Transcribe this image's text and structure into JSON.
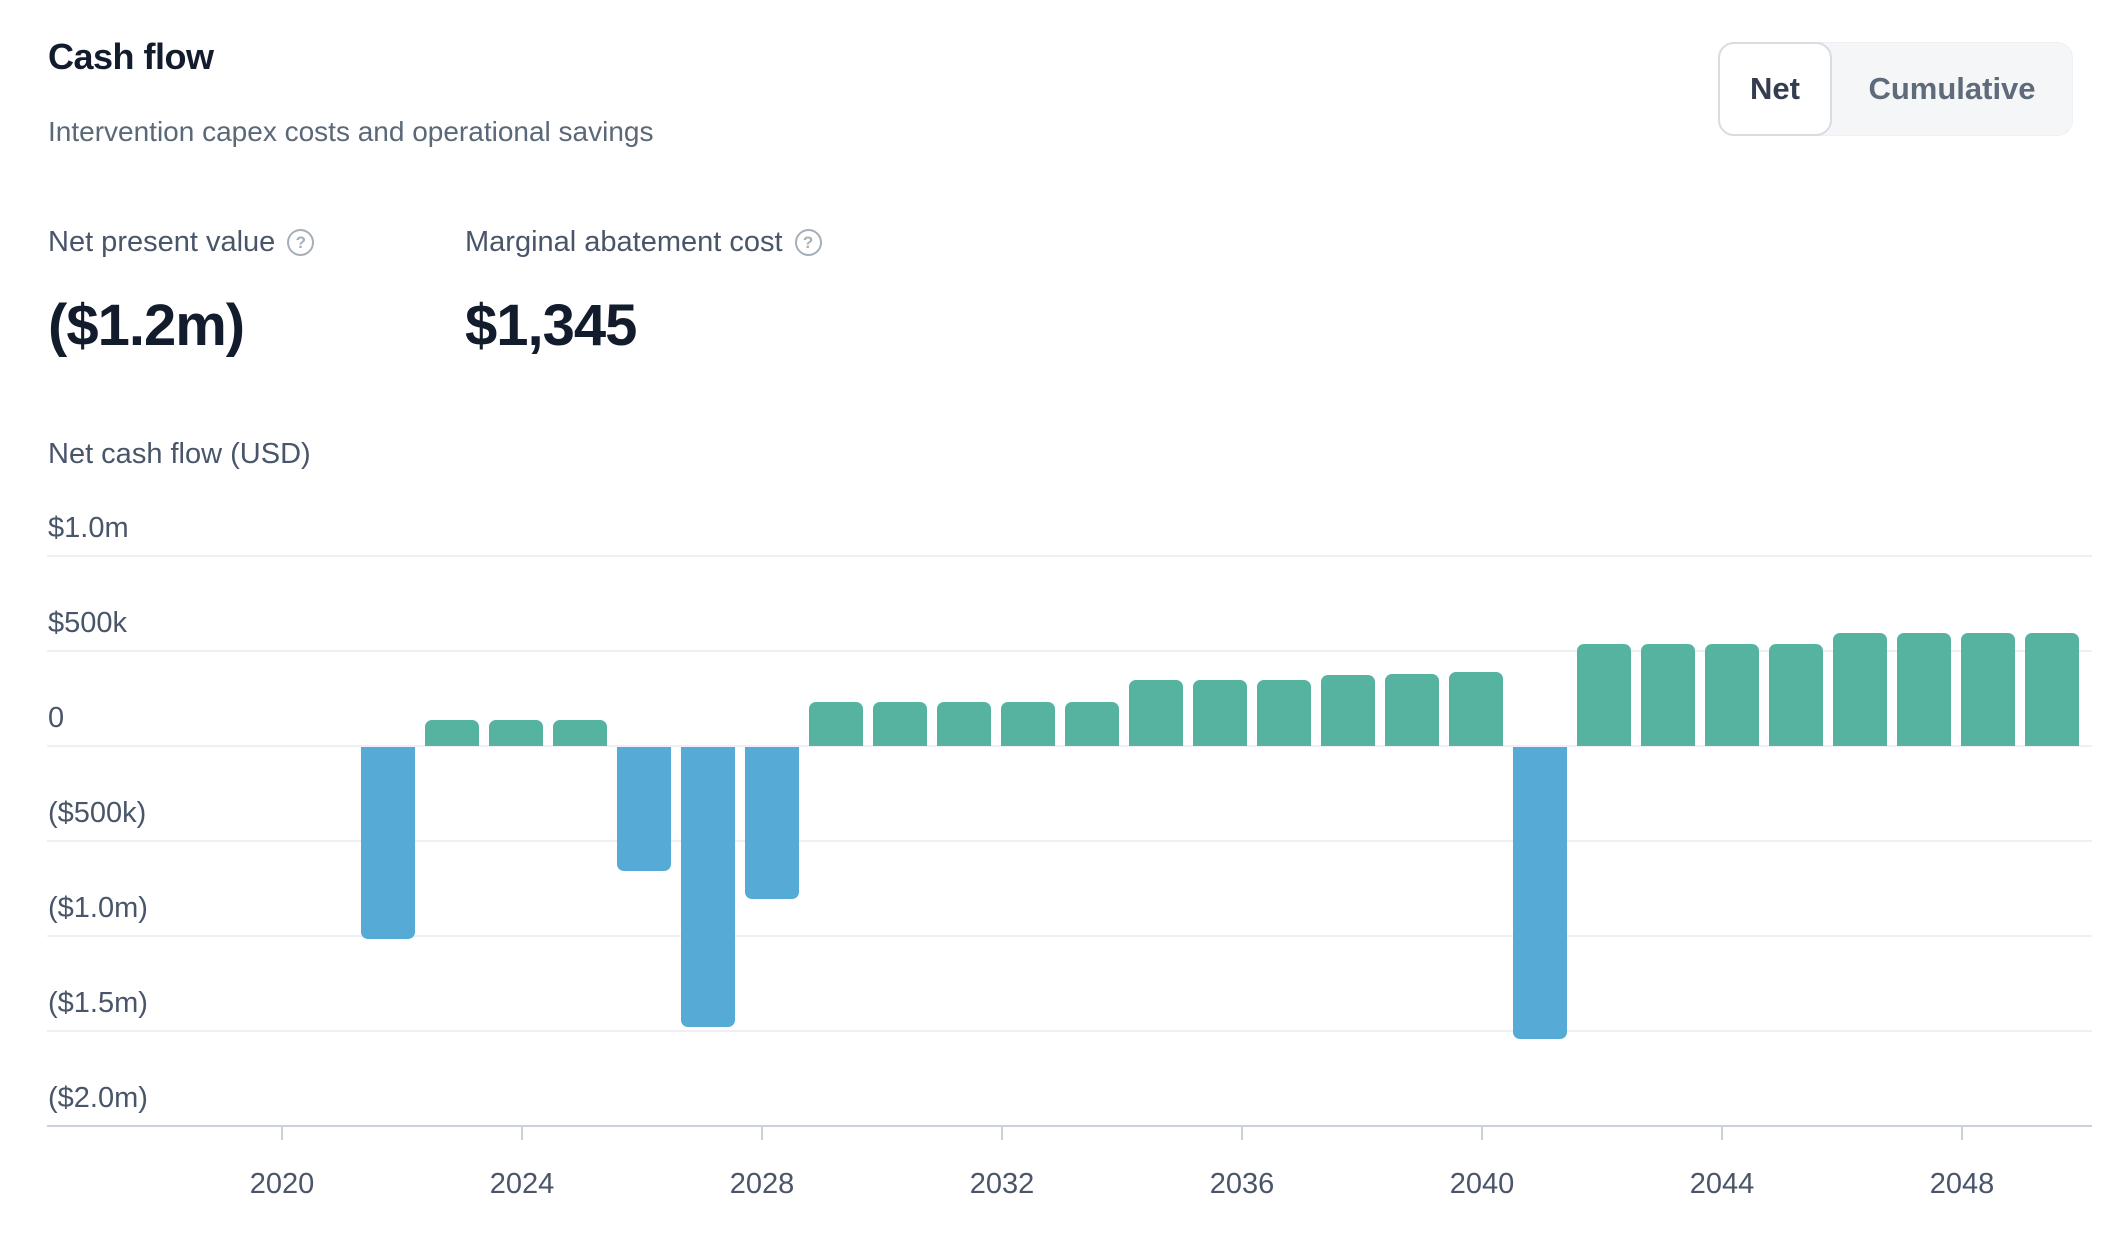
{
  "header": {
    "title": "Cash flow",
    "subtitle": "Intervention capex costs and operational savings"
  },
  "toggle": {
    "selected": "Net",
    "options": [
      {
        "label": "Net",
        "selected": true
      },
      {
        "label": "Cumulative",
        "selected": false
      }
    ]
  },
  "metrics": [
    {
      "label": "Net present value",
      "value": "($1.2m)",
      "icon": "question-circle-icon"
    },
    {
      "label": "Marginal abatement cost",
      "value": "$1,345",
      "icon": "question-circle-icon"
    }
  ],
  "chart_data": {
    "type": "bar",
    "title": "Net cash flow (USD)",
    "xlabel": "",
    "ylabel": "Net cash flow (USD)",
    "ylim": [
      -2000000,
      1000000
    ],
    "grid": "horizontal",
    "legend": "none",
    "units": "USD thousands",
    "categories": [
      2022,
      2023,
      2024,
      2025,
      2026,
      2027,
      2028,
      2029,
      2030,
      2031,
      2032,
      2033,
      2034,
      2035,
      2036,
      2037,
      2038,
      2039,
      2040,
      2041,
      2042,
      2043,
      2044,
      2045,
      2046,
      2047,
      2048
    ],
    "values_usd_k": [
      -1010,
      135,
      135,
      135,
      -650,
      -1475,
      -800,
      230,
      230,
      230,
      230,
      230,
      345,
      345,
      345,
      375,
      380,
      390,
      -1535,
      535,
      535,
      535,
      535,
      595,
      595,
      595,
      595
    ],
    "y_ticks": [
      {
        "label": "$1.0m",
        "value_k": 1000
      },
      {
        "label": "$500k",
        "value_k": 500
      },
      {
        "label": "0",
        "value_k": 0
      },
      {
        "label": "($500k)",
        "value_k": -500
      },
      {
        "label": "($1.0m)",
        "value_k": -1000
      },
      {
        "label": "($1.5m)",
        "value_k": -1500
      },
      {
        "label": "($2.0m)",
        "value_k": -2000
      }
    ],
    "x_ticks": [
      2020,
      2024,
      2028,
      2032,
      2036,
      2040,
      2044,
      2048
    ],
    "colors": {
      "positive": "#55b3a0",
      "negative": "#55abd6",
      "gridline": "#eef0f5",
      "axis": "#cbd1da",
      "tick_label": "#4a5568"
    }
  }
}
